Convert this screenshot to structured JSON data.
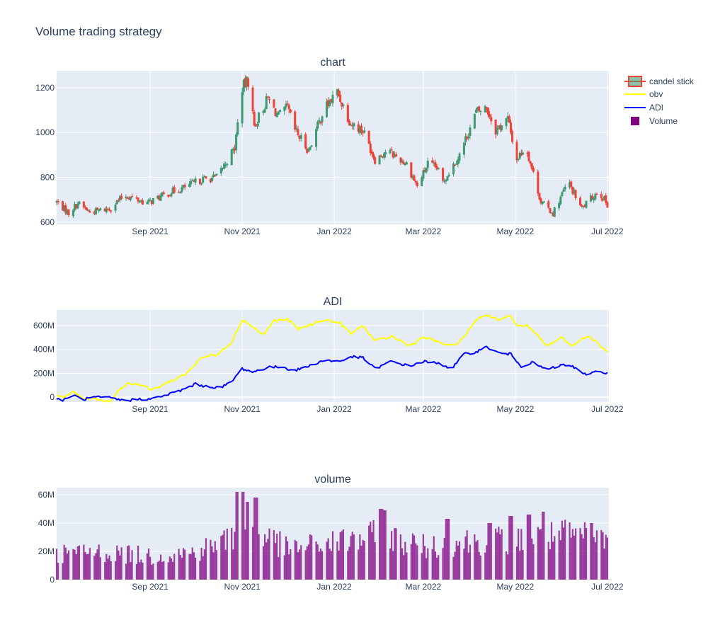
{
  "title": "Volume trading strategy",
  "colors": {
    "background": "#ffffff",
    "plot_bg": "#e5ecf6",
    "grid": "#ffffff",
    "text": "#2a3f5f",
    "increasing": "#3d9970",
    "decreasing": "#ef4136",
    "obv": "#ffff00",
    "adi": "#0000ff",
    "volume": "#800080"
  },
  "legend": {
    "entries": [
      {
        "label": "candel stick",
        "kind": "candle"
      },
      {
        "label": "obv",
        "kind": "line",
        "color": "#ffff00"
      },
      {
        "label": "ADI",
        "kind": "line",
        "color": "#0000ff"
      },
      {
        "label": "Volume",
        "kind": "bar",
        "color": "#800080"
      }
    ]
  },
  "chart_data": [
    {
      "type": "candlestick",
      "subplot_title": "chart",
      "x_range": [
        "2021-07-01",
        "2022-07-02"
      ],
      "x_ticks": [
        {
          "date": "2021-09-01",
          "label": "Sep 2021"
        },
        {
          "date": "2021-11-01",
          "label": "Nov 2021"
        },
        {
          "date": "2022-01-01",
          "label": "Jan 2022"
        },
        {
          "date": "2022-03-01",
          "label": "Mar 2022"
        },
        {
          "date": "2022-05-01",
          "label": "May 2022"
        },
        {
          "date": "2022-07-01",
          "label": "Jul 2022"
        }
      ],
      "ylim": [
        590,
        1275
      ],
      "y_ticks": [
        {
          "v": 600,
          "label": "600"
        },
        {
          "v": 800,
          "label": "800"
        },
        {
          "v": 1000,
          "label": "1000"
        },
        {
          "v": 1200,
          "label": "1200"
        }
      ],
      "series": [
        {
          "name": "candel stick",
          "close_anchors": [
            {
              "date": "2021-07-01",
              "v": 690
            },
            {
              "date": "2021-07-09",
              "v": 640
            },
            {
              "date": "2021-07-15",
              "v": 685
            },
            {
              "date": "2021-07-23",
              "v": 645
            },
            {
              "date": "2021-08-05",
              "v": 660
            },
            {
              "date": "2021-08-15",
              "v": 720
            },
            {
              "date": "2021-08-30",
              "v": 685
            },
            {
              "date": "2021-09-15",
              "v": 735
            },
            {
              "date": "2021-09-22",
              "v": 750
            },
            {
              "date": "2021-10-05",
              "v": 790
            },
            {
              "date": "2021-10-15",
              "v": 800
            },
            {
              "date": "2021-10-22",
              "v": 875
            },
            {
              "date": "2021-10-27",
              "v": 930
            },
            {
              "date": "2021-11-01",
              "v": 1200
            },
            {
              "date": "2021-11-05",
              "v": 1230
            },
            {
              "date": "2021-11-09",
              "v": 1030
            },
            {
              "date": "2021-11-18",
              "v": 1150
            },
            {
              "date": "2021-11-25",
              "v": 1070
            },
            {
              "date": "2021-12-01",
              "v": 1110
            },
            {
              "date": "2021-12-06",
              "v": 1010
            },
            {
              "date": "2021-12-15",
              "v": 920
            },
            {
              "date": "2021-12-25",
              "v": 1100
            },
            {
              "date": "2022-01-03",
              "v": 1180
            },
            {
              "date": "2022-01-12",
              "v": 1040
            },
            {
              "date": "2022-01-20",
              "v": 1010
            },
            {
              "date": "2022-01-28",
              "v": 880
            },
            {
              "date": "2022-02-05",
              "v": 920
            },
            {
              "date": "2022-02-18",
              "v": 860
            },
            {
              "date": "2022-02-25",
              "v": 760
            },
            {
              "date": "2022-03-04",
              "v": 860
            },
            {
              "date": "2022-03-10",
              "v": 840
            },
            {
              "date": "2022-03-14",
              "v": 780
            },
            {
              "date": "2022-03-25",
              "v": 900
            },
            {
              "date": "2022-04-05",
              "v": 1090
            },
            {
              "date": "2022-04-12",
              "v": 1110
            },
            {
              "date": "2022-04-18",
              "v": 1010
            },
            {
              "date": "2022-04-26",
              "v": 1060
            },
            {
              "date": "2022-05-02",
              "v": 880
            },
            {
              "date": "2022-05-08",
              "v": 940
            },
            {
              "date": "2022-05-18",
              "v": 690
            },
            {
              "date": "2022-05-26",
              "v": 640
            },
            {
              "date": "2022-06-05",
              "v": 780
            },
            {
              "date": "2022-06-14",
              "v": 660
            },
            {
              "date": "2022-06-25",
              "v": 740
            },
            {
              "date": "2022-07-01",
              "v": 680
            }
          ]
        }
      ]
    },
    {
      "type": "line",
      "subplot_title": "ADI",
      "x_range": [
        "2021-07-01",
        "2022-07-02"
      ],
      "ylim": [
        -40000000,
        730000000
      ],
      "y_ticks": [
        {
          "v": 0,
          "label": "0"
        },
        {
          "v": 200000000,
          "label": "200M"
        },
        {
          "v": 400000000,
          "label": "400M"
        },
        {
          "v": 600000000,
          "label": "600M"
        }
      ],
      "series": [
        {
          "name": "obv",
          "color": "#ffff00",
          "points": [
            {
              "date": "2021-07-01",
              "v": 20000000
            },
            {
              "date": "2021-07-06",
              "v": 0
            },
            {
              "date": "2021-07-12",
              "v": 45000000
            },
            {
              "date": "2021-07-18",
              "v": -15000000
            },
            {
              "date": "2021-07-26",
              "v": -10000000
            },
            {
              "date": "2021-08-05",
              "v": -35000000
            },
            {
              "date": "2021-08-12",
              "v": 70000000
            },
            {
              "date": "2021-08-18",
              "v": 120000000
            },
            {
              "date": "2021-08-25",
              "v": 105000000
            },
            {
              "date": "2021-09-02",
              "v": 60000000
            },
            {
              "date": "2021-09-14",
              "v": 130000000
            },
            {
              "date": "2021-09-25",
              "v": 200000000
            },
            {
              "date": "2021-10-05",
              "v": 330000000
            },
            {
              "date": "2021-10-15",
              "v": 360000000
            },
            {
              "date": "2021-10-25",
              "v": 460000000
            },
            {
              "date": "2021-11-01",
              "v": 650000000
            },
            {
              "date": "2021-11-08",
              "v": 590000000
            },
            {
              "date": "2021-11-15",
              "v": 520000000
            },
            {
              "date": "2021-11-22",
              "v": 640000000
            },
            {
              "date": "2021-12-01",
              "v": 650000000
            },
            {
              "date": "2021-12-08",
              "v": 570000000
            },
            {
              "date": "2021-12-15",
              "v": 600000000
            },
            {
              "date": "2021-12-25",
              "v": 650000000
            },
            {
              "date": "2022-01-05",
              "v": 620000000
            },
            {
              "date": "2022-01-12",
              "v": 530000000
            },
            {
              "date": "2022-01-20",
              "v": 600000000
            },
            {
              "date": "2022-01-28",
              "v": 470000000
            },
            {
              "date": "2022-02-08",
              "v": 510000000
            },
            {
              "date": "2022-02-20",
              "v": 430000000
            },
            {
              "date": "2022-03-01",
              "v": 500000000
            },
            {
              "date": "2022-03-12",
              "v": 460000000
            },
            {
              "date": "2022-03-20",
              "v": 420000000
            },
            {
              "date": "2022-03-28",
              "v": 500000000
            },
            {
              "date": "2022-04-05",
              "v": 650000000
            },
            {
              "date": "2022-04-12",
              "v": 690000000
            },
            {
              "date": "2022-04-20",
              "v": 650000000
            },
            {
              "date": "2022-04-28",
              "v": 680000000
            },
            {
              "date": "2022-05-03",
              "v": 590000000
            },
            {
              "date": "2022-05-08",
              "v": 610000000
            },
            {
              "date": "2022-05-15",
              "v": 520000000
            },
            {
              "date": "2022-05-22",
              "v": 430000000
            },
            {
              "date": "2022-06-01",
              "v": 500000000
            },
            {
              "date": "2022-06-08",
              "v": 430000000
            },
            {
              "date": "2022-06-18",
              "v": 520000000
            },
            {
              "date": "2022-06-25",
              "v": 450000000
            },
            {
              "date": "2022-07-01",
              "v": 380000000
            }
          ]
        },
        {
          "name": "ADI",
          "color": "#0000ff",
          "points": [
            {
              "date": "2021-07-01",
              "v": -15000000
            },
            {
              "date": "2021-07-06",
              "v": -25000000
            },
            {
              "date": "2021-07-12",
              "v": 20000000
            },
            {
              "date": "2021-07-18",
              "v": -20000000
            },
            {
              "date": "2021-07-26",
              "v": 0
            },
            {
              "date": "2021-08-05",
              "v": -5000000
            },
            {
              "date": "2021-08-15",
              "v": -30000000
            },
            {
              "date": "2021-08-25",
              "v": -15000000
            },
            {
              "date": "2021-09-02",
              "v": -15000000
            },
            {
              "date": "2021-09-12",
              "v": 20000000
            },
            {
              "date": "2021-09-22",
              "v": 60000000
            },
            {
              "date": "2021-10-01",
              "v": 110000000
            },
            {
              "date": "2021-10-08",
              "v": 90000000
            },
            {
              "date": "2021-10-18",
              "v": 80000000
            },
            {
              "date": "2021-10-25",
              "v": 130000000
            },
            {
              "date": "2021-11-01",
              "v": 240000000
            },
            {
              "date": "2021-11-08",
              "v": 210000000
            },
            {
              "date": "2021-11-18",
              "v": 250000000
            },
            {
              "date": "2021-11-28",
              "v": 255000000
            },
            {
              "date": "2021-12-05",
              "v": 220000000
            },
            {
              "date": "2021-12-15",
              "v": 260000000
            },
            {
              "date": "2021-12-25",
              "v": 310000000
            },
            {
              "date": "2022-01-05",
              "v": 300000000
            },
            {
              "date": "2022-01-12",
              "v": 340000000
            },
            {
              "date": "2022-01-20",
              "v": 330000000
            },
            {
              "date": "2022-01-28",
              "v": 240000000
            },
            {
              "date": "2022-02-08",
              "v": 300000000
            },
            {
              "date": "2022-02-20",
              "v": 260000000
            },
            {
              "date": "2022-03-01",
              "v": 300000000
            },
            {
              "date": "2022-03-12",
              "v": 280000000
            },
            {
              "date": "2022-03-20",
              "v": 240000000
            },
            {
              "date": "2022-03-28",
              "v": 360000000
            },
            {
              "date": "2022-04-05",
              "v": 380000000
            },
            {
              "date": "2022-04-12",
              "v": 420000000
            },
            {
              "date": "2022-04-20",
              "v": 370000000
            },
            {
              "date": "2022-04-28",
              "v": 360000000
            },
            {
              "date": "2022-05-05",
              "v": 260000000
            },
            {
              "date": "2022-05-12",
              "v": 290000000
            },
            {
              "date": "2022-05-22",
              "v": 230000000
            },
            {
              "date": "2022-06-01",
              "v": 270000000
            },
            {
              "date": "2022-06-08",
              "v": 260000000
            },
            {
              "date": "2022-06-15",
              "v": 190000000
            },
            {
              "date": "2022-06-25",
              "v": 220000000
            },
            {
              "date": "2022-07-01",
              "v": 200000000
            }
          ]
        }
      ]
    },
    {
      "type": "bar",
      "subplot_title": "volume",
      "x_range": [
        "2021-07-01",
        "2022-07-02"
      ],
      "ylim": [
        0,
        65000000
      ],
      "y_ticks": [
        {
          "v": 0,
          "label": "0"
        },
        {
          "v": 20000000,
          "label": "20M"
        },
        {
          "v": 40000000,
          "label": "40M"
        },
        {
          "v": 60000000,
          "label": "60M"
        }
      ],
      "series": [
        {
          "name": "Volume",
          "color": "#800080",
          "level_anchors": [
            {
              "date": "2021-07-01",
              "v": 19000000
            },
            {
              "date": "2021-08-01",
              "v": 20000000
            },
            {
              "date": "2021-09-01",
              "v": 17000000
            },
            {
              "date": "2021-10-01",
              "v": 20000000
            },
            {
              "date": "2021-10-25",
              "v": 30000000
            },
            {
              "date": "2021-11-01",
              "v": 42000000
            },
            {
              "date": "2021-11-15",
              "v": 33000000
            },
            {
              "date": "2021-12-01",
              "v": 22000000
            },
            {
              "date": "2022-01-01",
              "v": 27000000
            },
            {
              "date": "2022-02-01",
              "v": 32000000
            },
            {
              "date": "2022-03-01",
              "v": 24000000
            },
            {
              "date": "2022-04-01",
              "v": 28000000
            },
            {
              "date": "2022-05-01",
              "v": 29000000
            },
            {
              "date": "2022-06-01",
              "v": 32000000
            },
            {
              "date": "2022-07-01",
              "v": 30000000
            }
          ],
          "peaks": [
            {
              "date": "2021-10-29",
              "v": 62000000
            },
            {
              "date": "2021-11-01",
              "v": 62000000
            },
            {
              "date": "2021-11-05",
              "v": 55000000
            },
            {
              "date": "2021-11-10",
              "v": 58000000
            },
            {
              "date": "2022-02-01",
              "v": 50000000
            },
            {
              "date": "2022-02-04",
              "v": 49000000
            },
            {
              "date": "2022-03-17",
              "v": 43000000
            },
            {
              "date": "2022-04-14",
              "v": 40000000
            },
            {
              "date": "2022-04-28",
              "v": 45000000
            },
            {
              "date": "2022-05-10",
              "v": 46000000
            },
            {
              "date": "2022-05-20",
              "v": 48000000
            },
            {
              "date": "2022-06-20",
              "v": 40000000
            }
          ]
        }
      ]
    }
  ]
}
